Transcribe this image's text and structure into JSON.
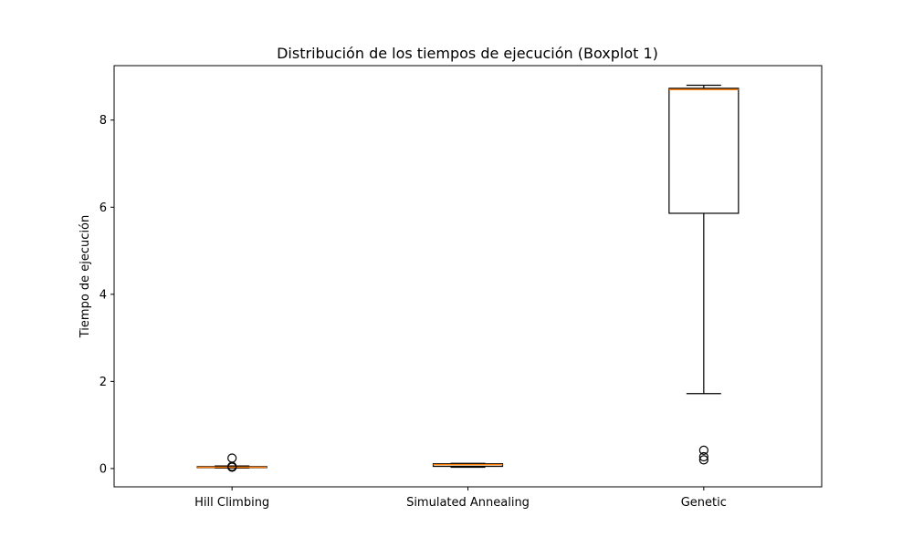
{
  "chart_data": {
    "type": "boxplot",
    "title": "Distribución de los tiempos de ejecución (Boxplot 1)",
    "xlabel": "",
    "ylabel": "Tiempo de ejecución",
    "ylim": [
      -0.42,
      9.25
    ],
    "yticks": [
      0,
      2,
      4,
      6,
      8
    ],
    "grid": false,
    "colors": {
      "box": "#000000",
      "median": "#ff7f0e",
      "axis": "#000000"
    },
    "categories": [
      "Hill Climbing",
      "Simulated Annealing",
      "Genetic"
    ],
    "boxes": [
      {
        "whisker_low": 0.01,
        "q1": 0.02,
        "median": 0.03,
        "q3": 0.045,
        "whisker_high": 0.06,
        "fliers": [
          0.24,
          0.05,
          0.03
        ]
      },
      {
        "whisker_low": 0.03,
        "q1": 0.05,
        "median": 0.09,
        "q3": 0.11,
        "whisker_high": 0.12,
        "fliers": []
      },
      {
        "whisker_low": 1.72,
        "q1": 5.86,
        "median": 8.7,
        "q3": 8.73,
        "whisker_high": 8.8,
        "fliers": [
          0.42,
          0.27,
          0.2
        ]
      }
    ]
  }
}
